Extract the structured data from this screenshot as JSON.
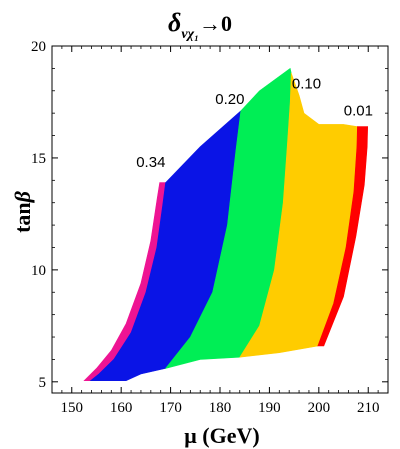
{
  "chart_data": {
    "type": "area",
    "title_main": "δ",
    "title_sub": "νχ₁",
    "title_tail": "→0",
    "xlabel": "μ (GeV)",
    "ylabel_pre": "tan",
    "ylabel_greek": "β",
    "xlim": [
      146,
      214
    ],
    "ylim": [
      4.5,
      20
    ],
    "xticks": [
      150,
      160,
      170,
      180,
      190,
      200,
      210
    ],
    "yticks": [
      5,
      10,
      15,
      20
    ],
    "grid": false,
    "colors": {
      "magenta": "#ee1493",
      "blue": "#0a14e6",
      "green": "#00ee55",
      "yellow": "#ffcc00",
      "red": "#ff0000"
    },
    "regions": [
      {
        "color": "magenta",
        "points": [
          [
            152.5,
            5.05
          ],
          [
            155,
            5.6
          ],
          [
            158,
            6.4
          ],
          [
            161,
            7.6
          ],
          [
            164,
            9.4
          ],
          [
            166,
            11.3
          ],
          [
            167.3,
            13.2
          ],
          [
            167.8,
            13.9
          ],
          [
            169,
            13.9
          ],
          [
            168.4,
            12.9
          ],
          [
            167.2,
            11.0
          ],
          [
            165,
            9.0
          ],
          [
            162,
            7.2
          ],
          [
            158.5,
            6.0
          ],
          [
            155.5,
            5.35
          ],
          [
            153.8,
            5.05
          ]
        ]
      },
      {
        "color": "blue",
        "points": [
          [
            153.8,
            5.05
          ],
          [
            161,
            5.05
          ],
          [
            164,
            5.35
          ],
          [
            169,
            5.6
          ],
          [
            174,
            7.0
          ],
          [
            178.5,
            9.0
          ],
          [
            181.5,
            12.0
          ],
          [
            183.2,
            15.3
          ],
          [
            184.2,
            17.1
          ],
          [
            176,
            15.5
          ],
          [
            169,
            13.9
          ],
          [
            168.4,
            12.9
          ],
          [
            167.2,
            11.0
          ],
          [
            165,
            9.0
          ],
          [
            162,
            7.2
          ],
          [
            158.5,
            6.0
          ],
          [
            155.5,
            5.35
          ]
        ]
      },
      {
        "color": "green",
        "points": [
          [
            169,
            5.6
          ],
          [
            176,
            6.0
          ],
          [
            184,
            6.1
          ],
          [
            188,
            7.5
          ],
          [
            191,
            10
          ],
          [
            192.8,
            13
          ],
          [
            193.6,
            15.5
          ],
          [
            194.2,
            17.5
          ],
          [
            194.4,
            18.8
          ],
          [
            194.2,
            19.0
          ],
          [
            188,
            18.0
          ],
          [
            184.2,
            17.1
          ],
          [
            183.2,
            15.3
          ],
          [
            181.5,
            12.0
          ],
          [
            178.5,
            9.0
          ],
          [
            174,
            7.0
          ]
        ]
      },
      {
        "color": "yellow",
        "points": [
          [
            184,
            6.1
          ],
          [
            192,
            6.3
          ],
          [
            199.8,
            6.6
          ],
          [
            203,
            8.5
          ],
          [
            205.5,
            11
          ],
          [
            207.1,
            13.5
          ],
          [
            207.7,
            15.5
          ],
          [
            207.8,
            16.4
          ],
          [
            205,
            16.5
          ],
          [
            200,
            16.5
          ],
          [
            197,
            17.0
          ],
          [
            196,
            17.8
          ],
          [
            194.4,
            18.8
          ],
          [
            194.2,
            17.5
          ],
          [
            193.6,
            15.5
          ],
          [
            192.8,
            13
          ],
          [
            191,
            10
          ],
          [
            188,
            7.5
          ]
        ]
      },
      {
        "color": "red",
        "points": [
          [
            199.8,
            6.6
          ],
          [
            201,
            6.6
          ],
          [
            205,
            8.8
          ],
          [
            207.5,
            11.5
          ],
          [
            209.2,
            13.8
          ],
          [
            209.8,
            15.5
          ],
          [
            209.9,
            16.4
          ],
          [
            207.8,
            16.4
          ],
          [
            207.7,
            15.5
          ],
          [
            207.1,
            13.5
          ],
          [
            205.5,
            11
          ],
          [
            203,
            8.5
          ]
        ]
      }
    ],
    "annotations": [
      {
        "text": "0.34",
        "x": 166.0,
        "y": 14.6
      },
      {
        "text": "0.20",
        "x": 182.0,
        "y": 17.4
      },
      {
        "text": "0.10",
        "x": 197.5,
        "y": 18.1
      },
      {
        "text": "0.01",
        "x": 208.0,
        "y": 16.9
      }
    ]
  }
}
